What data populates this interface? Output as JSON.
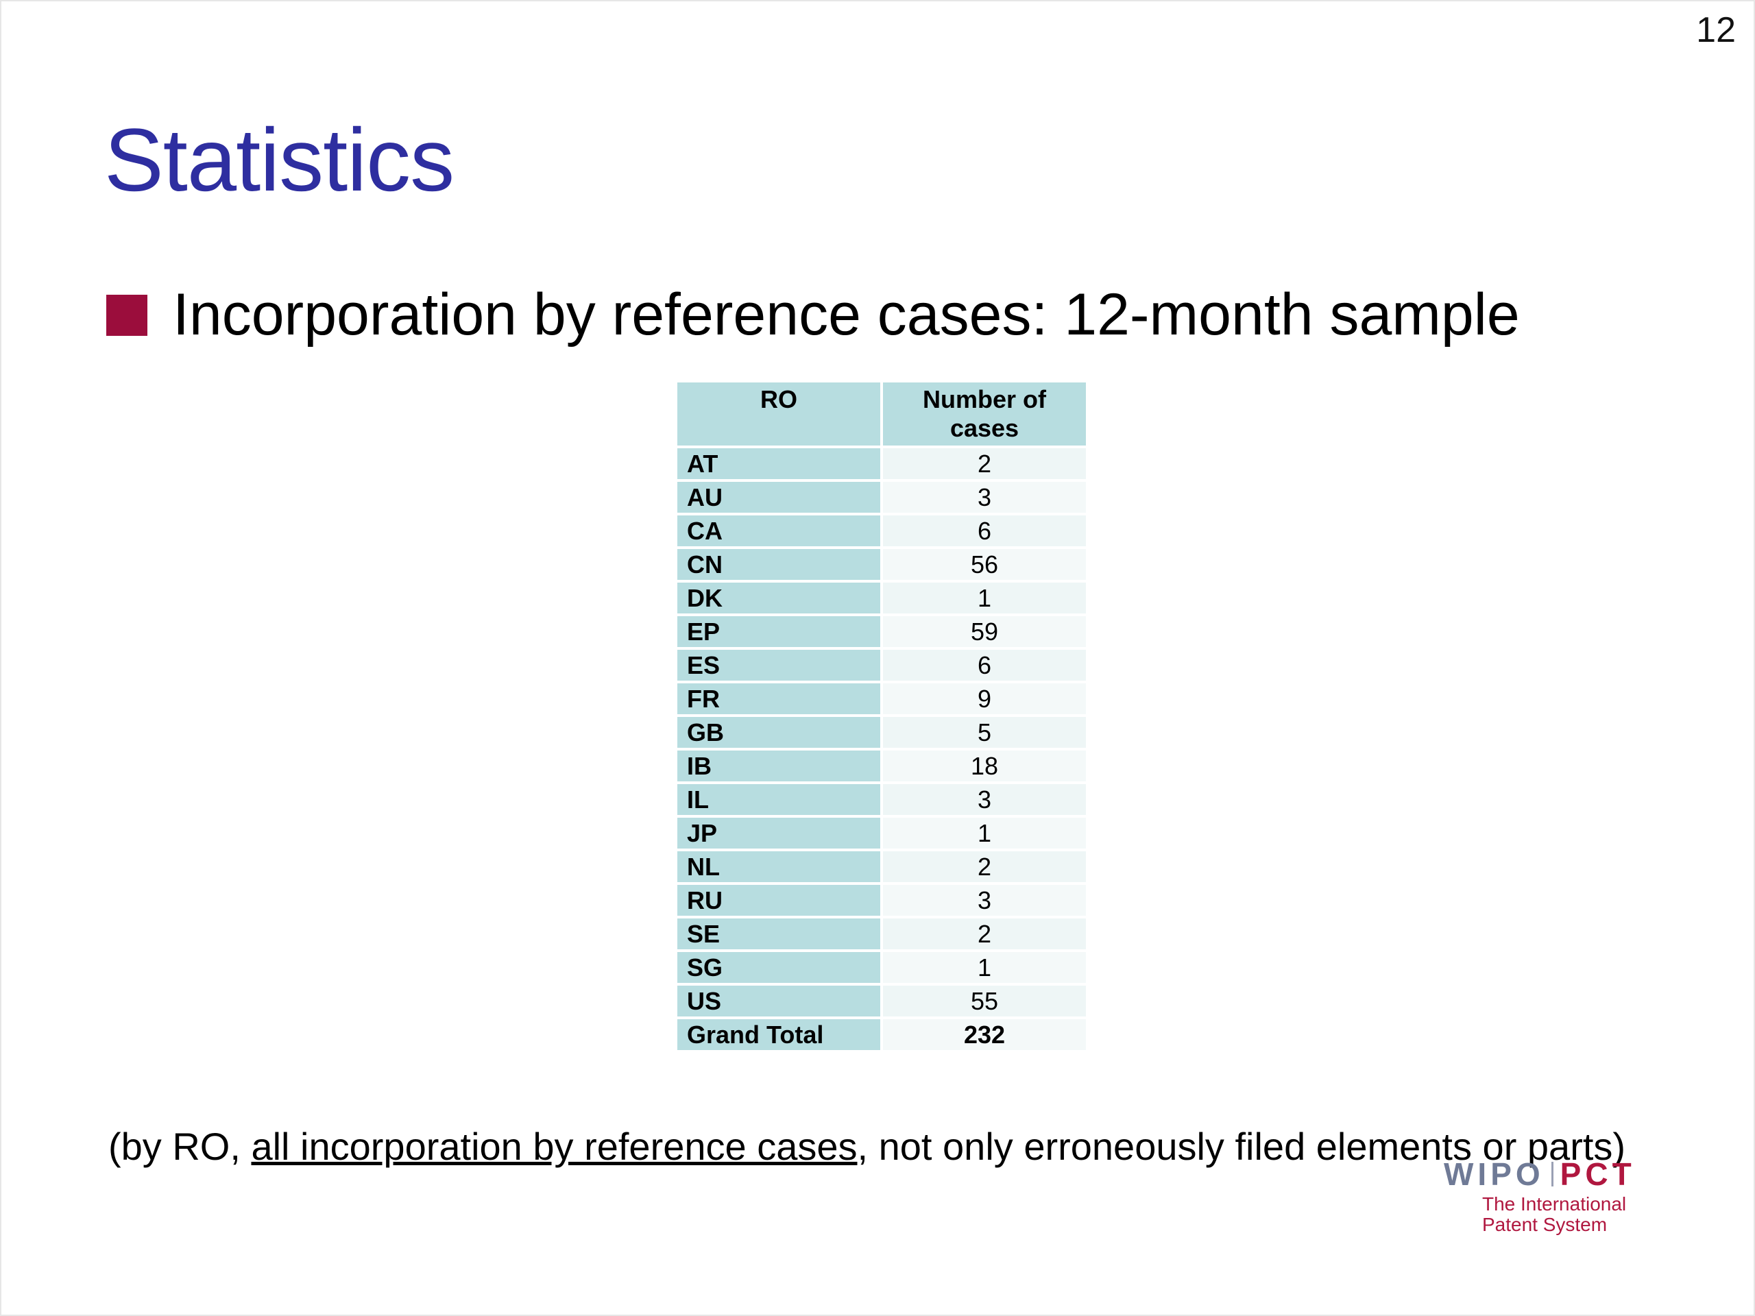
{
  "page_number": "12",
  "title": "Statistics",
  "bullet": {
    "text": "Incorporation by reference cases: 12-month sample",
    "color": "#9b0d3c"
  },
  "table": {
    "headers": [
      "RO",
      "Number of cases"
    ],
    "rows": [
      {
        "ro": "AT",
        "cases": "2"
      },
      {
        "ro": "AU",
        "cases": "3"
      },
      {
        "ro": "CA",
        "cases": "6"
      },
      {
        "ro": "CN",
        "cases": "56"
      },
      {
        "ro": "DK",
        "cases": "1"
      },
      {
        "ro": "EP",
        "cases": "59"
      },
      {
        "ro": "ES",
        "cases": "6"
      },
      {
        "ro": "FR",
        "cases": "9"
      },
      {
        "ro": "GB",
        "cases": "5"
      },
      {
        "ro": "IB",
        "cases": "18"
      },
      {
        "ro": "IL",
        "cases": "3"
      },
      {
        "ro": "JP",
        "cases": "1"
      },
      {
        "ro": "NL",
        "cases": "2"
      },
      {
        "ro": "RU",
        "cases": "3"
      },
      {
        "ro": "SE",
        "cases": "2"
      },
      {
        "ro": "SG",
        "cases": "1"
      },
      {
        "ro": "US",
        "cases": "55"
      }
    ],
    "total": {
      "label": "Grand Total",
      "cases": "232"
    }
  },
  "footnote": {
    "prefix": "(by RO, ",
    "underlined": "all incorporation by reference cases",
    "suffix": ", not only erroneously filed elements or parts)"
  },
  "logo": {
    "wipo": "WIPO",
    "pct": "PCT",
    "tagline_line1": "The International",
    "tagline_line2": "Patent System",
    "wipo_color": "#6f7a96",
    "pct_color": "#b0173f"
  },
  "colors": {
    "title": "#2e2ea0",
    "table_header": "#b7dde0",
    "table_cell": "#eef6f6"
  }
}
